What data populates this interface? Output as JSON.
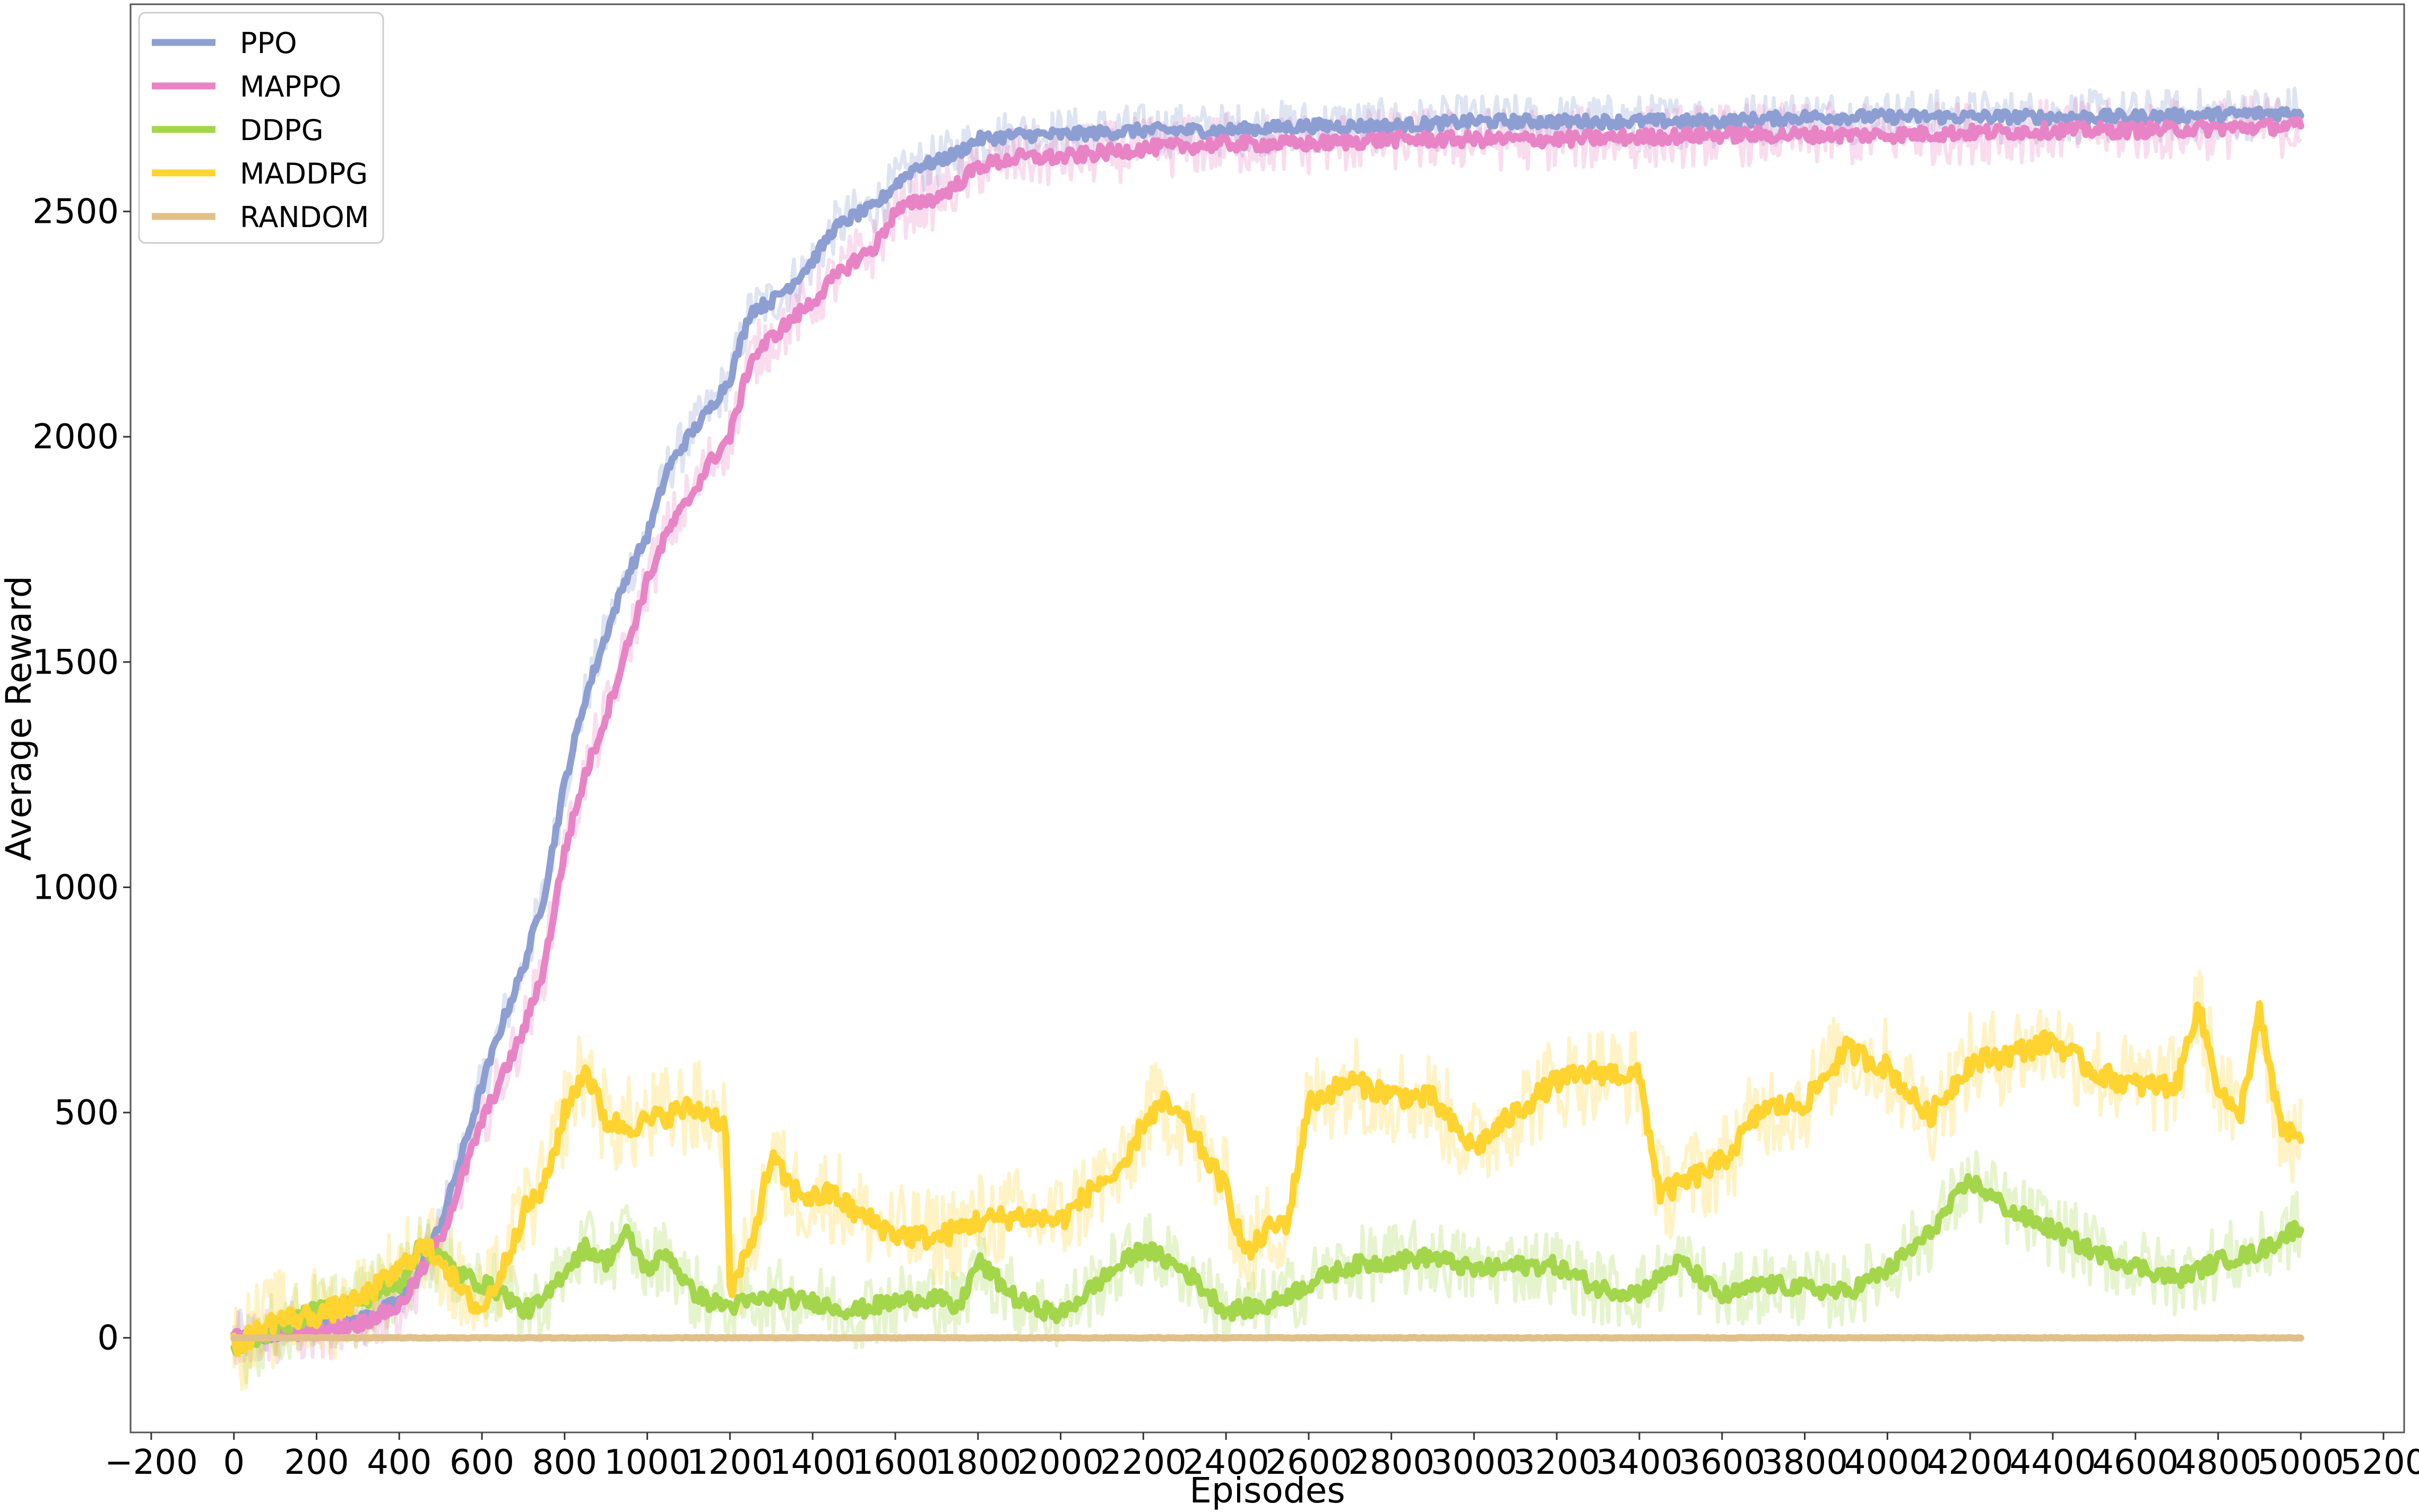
{
  "chart_data": {
    "type": "line",
    "title": "",
    "xlabel": "Episodes",
    "ylabel": "Average Reward",
    "xlim": [
      -250,
      5250
    ],
    "ylim": [
      -210,
      2960
    ],
    "xticks": [
      -200,
      0,
      200,
      400,
      600,
      800,
      1000,
      1200,
      1400,
      1600,
      1800,
      2000,
      2200,
      2400,
      2600,
      2800,
      3000,
      3200,
      3400,
      3600,
      3800,
      4000,
      4200,
      4400,
      4600,
      4800,
      5000,
      5200
    ],
    "yticks": [
      0,
      500,
      1000,
      1500,
      2000,
      2500
    ],
    "grid": false,
    "legend_position": "top-left",
    "series": [
      {
        "name": "PPO",
        "color": "#8d9fd2",
        "band_noise": 60,
        "x": [
          0,
          100,
          200,
          300,
          400,
          450,
          500,
          550,
          600,
          650,
          700,
          750,
          800,
          850,
          900,
          950,
          1000,
          1050,
          1100,
          1150,
          1200,
          1250,
          1300,
          1350,
          1400,
          1450,
          1500,
          1550,
          1600,
          1650,
          1700,
          1750,
          1800,
          1900,
          2000,
          2200,
          2400,
          2600,
          2800,
          3000,
          3200,
          3400,
          3600,
          3800,
          4000,
          4200,
          4400,
          4600,
          4800,
          5000
        ],
        "y": [
          0,
          10,
          20,
          40,
          80,
          150,
          250,
          400,
          560,
          700,
          820,
          980,
          1230,
          1420,
          1560,
          1690,
          1780,
          1930,
          2000,
          2060,
          2130,
          2280,
          2300,
          2340,
          2390,
          2460,
          2490,
          2510,
          2560,
          2600,
          2610,
          2630,
          2660,
          2670,
          2670,
          2680,
          2680,
          2690,
          2690,
          2700,
          2700,
          2700,
          2700,
          2710,
          2710,
          2710,
          2710,
          2710,
          2715,
          2720
        ]
      },
      {
        "name": "MAPPO",
        "color": "#e884c6",
        "band_noise": 70,
        "x": [
          0,
          100,
          200,
          300,
          400,
          450,
          500,
          550,
          600,
          650,
          700,
          750,
          800,
          850,
          900,
          950,
          1000,
          1050,
          1100,
          1150,
          1200,
          1250,
          1300,
          1350,
          1400,
          1450,
          1500,
          1550,
          1600,
          1650,
          1700,
          1750,
          1800,
          1900,
          2000,
          2200,
          2400,
          2600,
          2800,
          3000,
          3200,
          3400,
          3600,
          3800,
          4000,
          4200,
          4400,
          4600,
          4800,
          5000
        ],
        "y": [
          0,
          10,
          15,
          30,
          70,
          140,
          220,
          350,
          480,
          580,
          680,
          820,
          1080,
          1250,
          1380,
          1530,
          1680,
          1790,
          1860,
          1940,
          2000,
          2170,
          2220,
          2260,
          2300,
          2350,
          2390,
          2420,
          2500,
          2520,
          2530,
          2560,
          2600,
          2620,
          2620,
          2640,
          2650,
          2650,
          2660,
          2660,
          2660,
          2665,
          2670,
          2670,
          2670,
          2675,
          2680,
          2680,
          2685,
          2690
        ]
      },
      {
        "name": "DDPG",
        "color": "#a4d64b",
        "band_noise": 85,
        "x": [
          0,
          100,
          200,
          300,
          400,
          450,
          500,
          550,
          600,
          650,
          700,
          750,
          800,
          850,
          900,
          950,
          1000,
          1050,
          1100,
          1150,
          1200,
          1300,
          1400,
          1500,
          1600,
          1700,
          1750,
          1800,
          1900,
          2000,
          2100,
          2200,
          2300,
          2400,
          2500,
          2600,
          2700,
          2800,
          2900,
          3000,
          3100,
          3200,
          3300,
          3400,
          3500,
          3600,
          3700,
          3800,
          3900,
          4000,
          4100,
          4200,
          4300,
          4400,
          4500,
          4600,
          4700,
          4800,
          4900,
          5000
        ],
        "y": [
          -30,
          20,
          60,
          80,
          120,
          200,
          180,
          140,
          120,
          100,
          60,
          80,
          150,
          200,
          170,
          230,
          150,
          190,
          110,
          80,
          70,
          90,
          80,
          60,
          80,
          90,
          60,
          170,
          80,
          50,
          130,
          200,
          150,
          60,
          70,
          120,
          160,
          170,
          180,
          150,
          160,
          160,
          110,
          100,
          170,
          90,
          120,
          110,
          100,
          150,
          230,
          350,
          280,
          240,
          190,
          160,
          130,
          170,
          190,
          250
        ]
      },
      {
        "name": "MADDPG",
        "color": "#ffd430",
        "band_noise": 110,
        "x": [
          0,
          100,
          200,
          300,
          400,
          450,
          500,
          550,
          600,
          650,
          700,
          750,
          800,
          850,
          900,
          950,
          1000,
          1100,
          1150,
          1190,
          1200,
          1250,
          1300,
          1350,
          1400,
          1450,
          1500,
          1600,
          1700,
          1800,
          1900,
          2000,
          2100,
          2150,
          2200,
          2250,
          2300,
          2400,
          2450,
          2500,
          2550,
          2600,
          2700,
          2800,
          2900,
          2950,
          3000,
          3100,
          3200,
          3300,
          3400,
          3450,
          3500,
          3600,
          3700,
          3800,
          3900,
          4000,
          4100,
          4200,
          4300,
          4400,
          4500,
          4600,
          4700,
          4750,
          4800,
          4850,
          4900,
          4950,
          5000
        ],
        "y": [
          -20,
          40,
          50,
          80,
          150,
          200,
          180,
          100,
          60,
          150,
          280,
          330,
          500,
          600,
          480,
          470,
          480,
          510,
          500,
          470,
          100,
          200,
          400,
          330,
          310,
          320,
          280,
          230,
          220,
          260,
          270,
          260,
          350,
          360,
          480,
          520,
          480,
          330,
          180,
          240,
          260,
          520,
          570,
          540,
          530,
          470,
          420,
          500,
          570,
          590,
          580,
          320,
          340,
          390,
          510,
          520,
          640,
          600,
          490,
          610,
          630,
          660,
          590,
          560,
          560,
          740,
          560,
          480,
          720,
          470,
          440
        ]
      },
      {
        "name": "RANDOM",
        "color": "#e2c08a",
        "band_noise": 4,
        "x": [
          0,
          500,
          1000,
          1500,
          2000,
          2500,
          3000,
          3500,
          4000,
          4500,
          5000
        ],
        "y": [
          0,
          0,
          0,
          0,
          0,
          0,
          0,
          0,
          0,
          0,
          0
        ]
      }
    ]
  }
}
